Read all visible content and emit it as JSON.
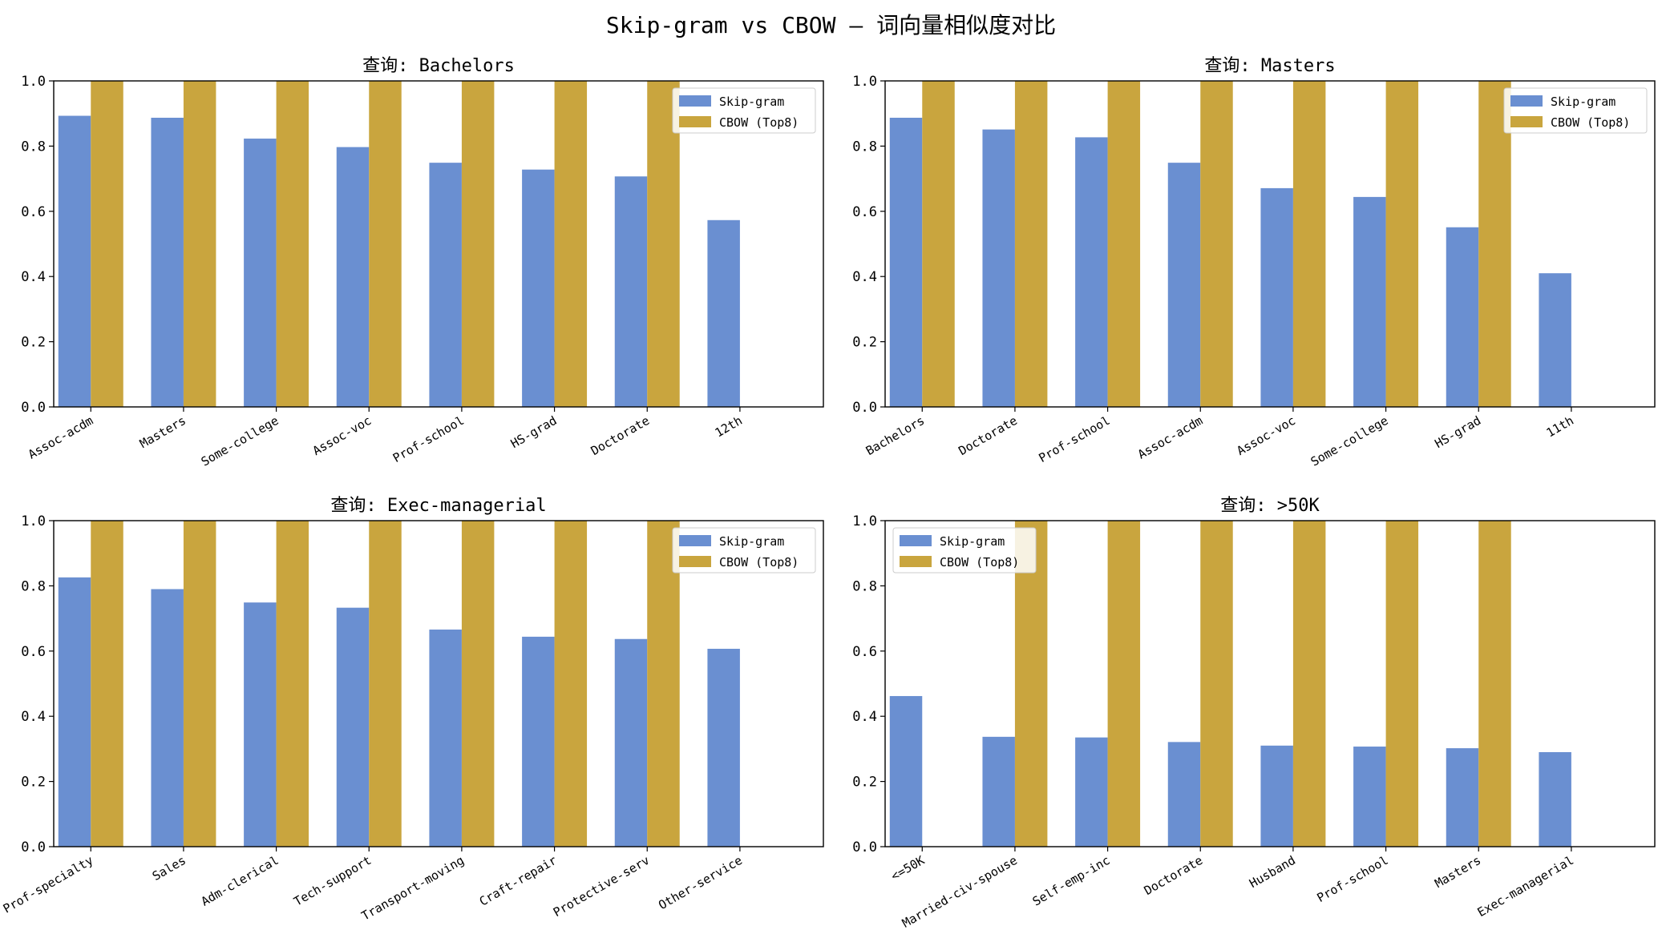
{
  "figure": {
    "title": "Skip-gram vs CBOW — 词向量相似度对比"
  },
  "colors": {
    "skipgram": "#6a8fd1",
    "cbow": "#c9a53e",
    "axis": "#000000",
    "legend_border": "#cccccc"
  },
  "chart_data": [
    {
      "type": "bar",
      "title": "查询: Bachelors",
      "categories": [
        "Assoc-acdm",
        "Masters",
        "Some-college",
        "Assoc-voc",
        "Prof-school",
        "HS-grad",
        "Doctorate",
        "12th"
      ],
      "series": [
        {
          "name": "Skip-gram",
          "values": [
            0.893,
            0.887,
            0.823,
            0.797,
            0.749,
            0.728,
            0.707,
            0.573
          ]
        },
        {
          "name": "CBOW (Top8)",
          "values": [
            1.0,
            1.0,
            1.0,
            1.0,
            1.0,
            1.0,
            1.0,
            0
          ]
        }
      ],
      "ylim": [
        0,
        1.0
      ],
      "yticks": [
        "0.0",
        "0.2",
        "0.4",
        "0.6",
        "0.8",
        "1.0"
      ],
      "legend": "top-right"
    },
    {
      "type": "bar",
      "title": "查询: Masters",
      "categories": [
        "Bachelors",
        "Doctorate",
        "Prof-school",
        "Assoc-acdm",
        "Assoc-voc",
        "Some-college",
        "HS-grad",
        "11th"
      ],
      "series": [
        {
          "name": "Skip-gram",
          "values": [
            0.887,
            0.851,
            0.827,
            0.749,
            0.671,
            0.644,
            0.551,
            0.41
          ]
        },
        {
          "name": "CBOW (Top8)",
          "values": [
            1.0,
            1.0,
            1.0,
            1.0,
            1.0,
            1.0,
            1.0,
            0
          ]
        }
      ],
      "ylim": [
        0,
        1.0
      ],
      "yticks": [
        "0.0",
        "0.2",
        "0.4",
        "0.6",
        "0.8",
        "1.0"
      ],
      "legend": "top-right"
    },
    {
      "type": "bar",
      "title": "查询: Exec-managerial",
      "categories": [
        "Prof-specialty",
        "Sales",
        "Adm-clerical",
        "Tech-support",
        "Transport-moving",
        "Craft-repair",
        "Protective-serv",
        "Other-service"
      ],
      "series": [
        {
          "name": "Skip-gram",
          "values": [
            0.826,
            0.79,
            0.749,
            0.733,
            0.666,
            0.644,
            0.637,
            0.607
          ]
        },
        {
          "name": "CBOW (Top8)",
          "values": [
            1.0,
            1.0,
            1.0,
            1.0,
            1.0,
            1.0,
            1.0,
            0
          ]
        }
      ],
      "ylim": [
        0,
        1.0
      ],
      "yticks": [
        "0.0",
        "0.2",
        "0.4",
        "0.6",
        "0.8",
        "1.0"
      ],
      "legend": "top-right"
    },
    {
      "type": "bar",
      "title": "查询: >50K",
      "categories": [
        "<=50K",
        "Married-civ-spouse",
        "Self-emp-inc",
        "Doctorate",
        "Husband",
        "Prof-school",
        "Masters",
        "Exec-managerial"
      ],
      "series": [
        {
          "name": "Skip-gram",
          "values": [
            0.462,
            0.337,
            0.335,
            0.321,
            0.31,
            0.307,
            0.302,
            0.29
          ]
        },
        {
          "name": "CBOW (Top8)",
          "values": [
            0,
            1.0,
            1.0,
            1.0,
            1.0,
            1.0,
            1.0,
            0
          ]
        }
      ],
      "ylim": [
        0,
        1.0
      ],
      "yticks": [
        "0.0",
        "0.2",
        "0.4",
        "0.6",
        "0.8",
        "1.0"
      ],
      "legend": "top-left"
    }
  ]
}
